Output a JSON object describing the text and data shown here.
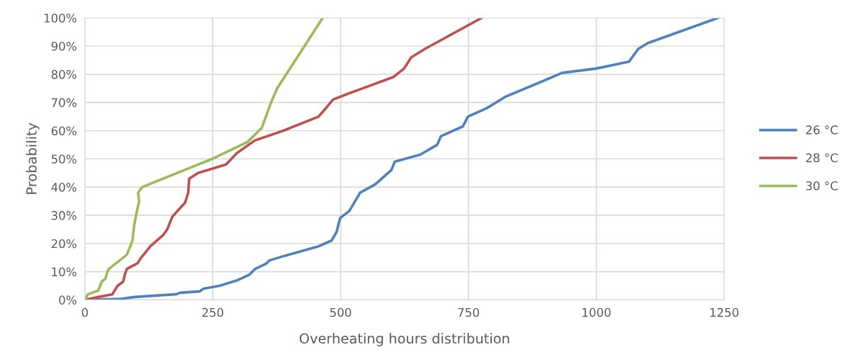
{
  "chart_data": {
    "type": "line",
    "xlabel": "Overheating hours distribution",
    "ylabel": "Probability",
    "xlim": [
      0,
      1250
    ],
    "xticks": [
      0,
      250,
      500,
      750,
      1000,
      1250
    ],
    "ylim": [
      0,
      100
    ],
    "yticks": [
      {
        "value": 0,
        "label": "0%"
      },
      {
        "value": 10,
        "label": "10%"
      },
      {
        "value": 20,
        "label": "20%"
      },
      {
        "value": 30,
        "label": "30%"
      },
      {
        "value": 40,
        "label": "40%"
      },
      {
        "value": 50,
        "label": "50%"
      },
      {
        "value": 60,
        "label": "60%"
      },
      {
        "value": 70,
        "label": "70%"
      },
      {
        "value": 80,
        "label": "80%"
      },
      {
        "value": 90,
        "label": "90%"
      },
      {
        "value": 100,
        "label": "100%"
      }
    ],
    "grid": true,
    "legend": "right",
    "marker": "none",
    "line_style": "solid",
    "series": [
      {
        "name": "26 °C",
        "color": "#4f81bd",
        "x": [
          0,
          68,
          96,
          179,
          186,
          224,
          232,
          263,
          299,
          322,
          333,
          354,
          361,
          388,
          457,
          482,
          492,
          499,
          517,
          538,
          568,
          599,
          606,
          656,
          689,
          696,
          739,
          749,
          786,
          822,
          888,
          933,
          999,
          1064,
          1072,
          1082,
          1100,
          1238
        ],
        "values": [
          0,
          0.3,
          1,
          2,
          2.5,
          3,
          4,
          5,
          7,
          9,
          11,
          12.8,
          14,
          15.5,
          19,
          21,
          24,
          29,
          31.5,
          38,
          41,
          46,
          49,
          51.5,
          55,
          58,
          61.5,
          65,
          68,
          72,
          77,
          80.5,
          82,
          84.5,
          86.5,
          89,
          91,
          100
        ]
      },
      {
        "name": "28 °C",
        "color": "#c0504d",
        "x": [
          0,
          26,
          54,
          57,
          64,
          75,
          78,
          82,
          103,
          110,
          117,
          128,
          153,
          161,
          171,
          196,
          202,
          204,
          221,
          276,
          297,
          332,
          388,
          457,
          470,
          485,
          513,
          603,
          624,
          638,
          665,
          776
        ],
        "values": [
          0,
          1,
          2,
          3,
          5,
          6.5,
          9,
          11,
          13,
          15,
          16.5,
          19,
          23,
          25,
          29.5,
          34.5,
          38,
          43,
          45,
          48,
          52,
          56.5,
          60,
          65,
          67.7,
          71,
          73,
          79,
          82,
          86,
          89,
          100
        ]
      },
      {
        "name": "30 °C",
        "color": "#9bbb59",
        "x": [
          0,
          6,
          26,
          33,
          40,
          44,
          47,
          68,
          82,
          93,
          96,
          100,
          106,
          104,
          112,
          249,
          318,
          346,
          364,
          376,
          465
        ],
        "values": [
          0,
          2,
          3.3,
          6.5,
          7.5,
          10,
          11,
          14,
          16,
          21,
          26,
          30,
          35,
          38,
          40,
          50,
          56,
          61,
          70,
          75,
          100
        ]
      }
    ]
  }
}
